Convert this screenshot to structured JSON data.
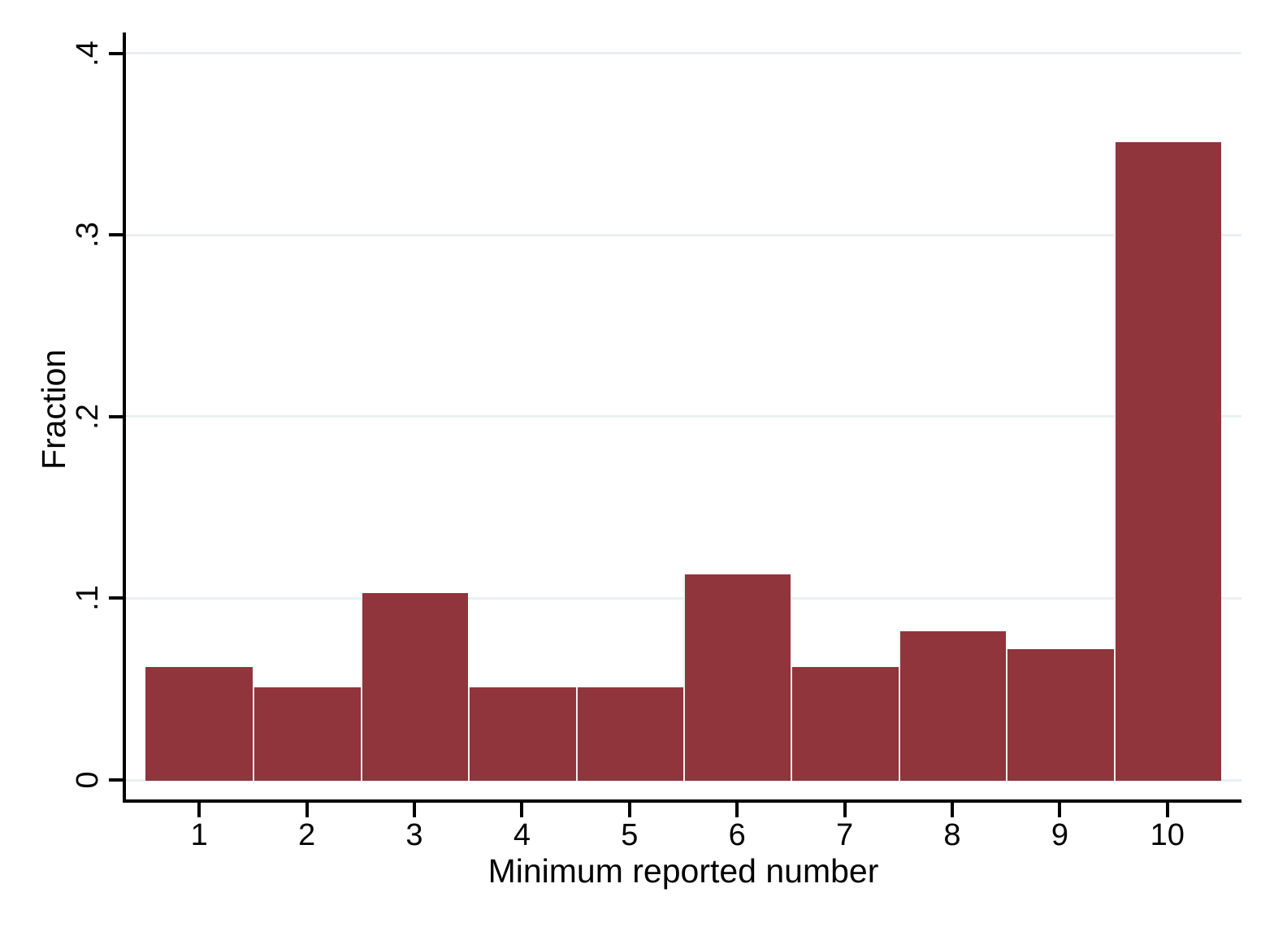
{
  "chart_data": {
    "type": "bar",
    "subtype": "histogram",
    "title": "",
    "xlabel": "Minimum reported number",
    "ylabel": "Fraction",
    "categories": [
      1,
      2,
      3,
      4,
      5,
      6,
      7,
      8,
      9,
      10
    ],
    "values": [
      0.062,
      0.051,
      0.103,
      0.051,
      0.051,
      0.113,
      0.062,
      0.082,
      0.072,
      0.351
    ],
    "x_tick_labels": [
      "1",
      "2",
      "3",
      "4",
      "5",
      "6",
      "7",
      "8",
      "9",
      "10"
    ],
    "y_tick_labels": [
      "0",
      ".1",
      ".2",
      ".3",
      ".4"
    ],
    "y_tick_values": [
      0,
      0.1,
      0.2,
      0.3,
      0.4
    ],
    "ylim": [
      0,
      0.4
    ],
    "xlim": [
      0.5,
      10.5
    ],
    "bar_width": 1,
    "grid": "horizontal-only",
    "legend_position": "none",
    "colors": {
      "bar_fill": "#90353B",
      "bar_separator": "#f2f0ef",
      "gridline": "#e9f0f2",
      "axis_line": "#000000",
      "text": "#000000",
      "background": "#ffffff"
    }
  }
}
